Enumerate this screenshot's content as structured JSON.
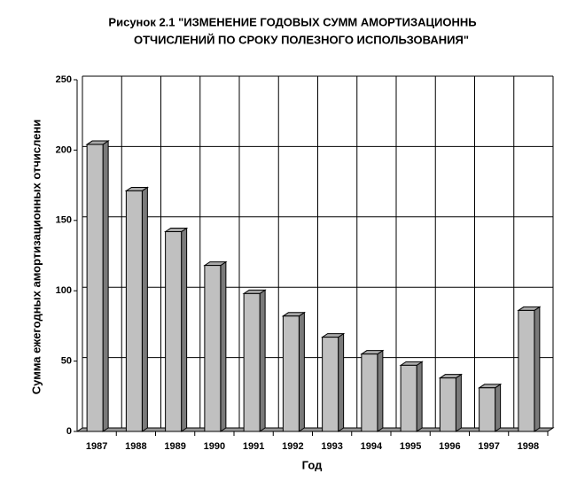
{
  "chart_data": {
    "type": "bar3d",
    "title": [
      "Рисунок 2.1 \"ИЗМЕНЕНИЕ ГОДОВЫХ СУММ АМОРТИЗАЦИОННЬ",
      "ОТЧИСЛЕНИЙ ПО СРОКУ ПОЛЕЗНОГО ИСПОЛЬЗОВАНИЯ\""
    ],
    "x_label": "Год",
    "y_label": "Сумма ежегодных амортизационных отчислени",
    "categories": [
      "1987",
      "1988",
      "1989",
      "1990",
      "1991",
      "1992",
      "1993",
      "1994",
      "1995",
      "1996",
      "1997",
      "1998"
    ],
    "values": [
      204,
      171,
      142,
      118,
      98,
      82,
      67,
      55,
      47,
      38,
      31,
      86
    ],
    "color": "#c0c0c0",
    "side_color": "#7a7a7a",
    "ylim": [
      0,
      250
    ],
    "yticks": [
      0,
      50,
      100,
      150,
      200,
      250
    ],
    "grid": true
  }
}
